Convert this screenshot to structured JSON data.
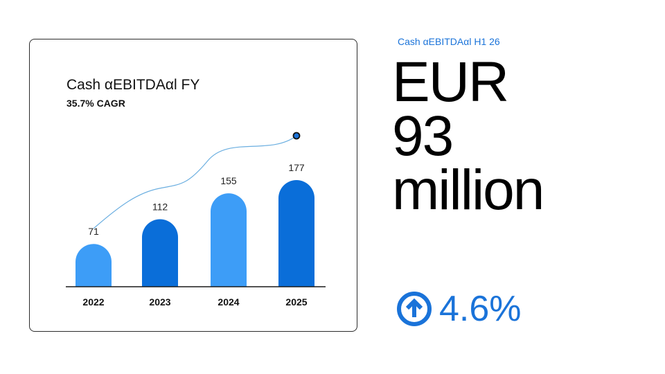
{
  "chart_data": {
    "type": "bar",
    "title": "Cash αEBITDAαl FY",
    "subtitle": "35.7% CAGR",
    "categories": [
      "2022",
      "2023",
      "2024",
      "2025"
    ],
    "values": [
      71,
      112,
      155,
      177
    ],
    "bar_colors": [
      "#3d9df7",
      "#0a6ed9",
      "#3d9df7",
      "#0a6ed9"
    ],
    "trend_line": true,
    "trend_color": "#6aaee0",
    "grid": false
  },
  "kpi": {
    "label": "Cash αEBITDAαl  H1 26",
    "value_line1": "EUR",
    "value_line2": "93",
    "value_line3": "million",
    "change": "4.6%",
    "change_icon": "arrow-up-circle-icon",
    "accent_color": "#1a73d9"
  }
}
